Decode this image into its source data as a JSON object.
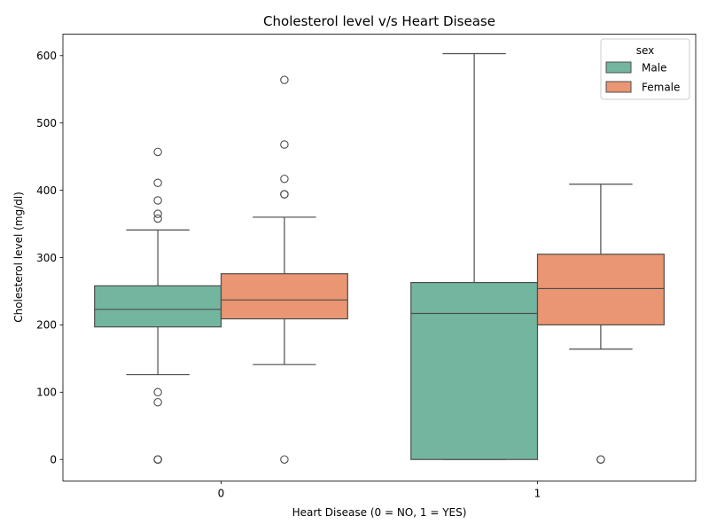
{
  "chart_data": {
    "type": "box",
    "title": "Cholesterol level v/s Heart Disease",
    "xlabel": "Heart Disease (0 = NO, 1 = YES)",
    "ylabel": "Cholesterol level (mg/dl)",
    "categories": [
      "0",
      "1"
    ],
    "ylim": [
      -32,
      632
    ],
    "yticks": [
      0,
      100,
      200,
      300,
      400,
      500,
      600
    ],
    "legend": {
      "title": "sex",
      "position": "top-right",
      "entries": [
        "Male",
        "Female"
      ]
    },
    "colors": {
      "Male": "#73b6a0",
      "Female": "#ea9672",
      "line": "#4d4d4d",
      "axis": "#000000"
    },
    "series": [
      {
        "name": "Male",
        "boxes": [
          {
            "category": "0",
            "whisker_low": 126,
            "q1": 197,
            "median": 223,
            "q3": 258,
            "whisker_high": 341,
            "outliers": [
              457,
              411,
              385,
              365,
              358,
              100,
              85,
              0,
              0,
              0
            ]
          },
          {
            "category": "1",
            "whisker_low": 0,
            "q1": 0,
            "median": 217,
            "q3": 263,
            "whisker_high": 603,
            "outliers": []
          }
        ]
      },
      {
        "name": "Female",
        "boxes": [
          {
            "category": "0",
            "whisker_low": 141,
            "q1": 209,
            "median": 237,
            "q3": 276,
            "whisker_high": 360,
            "outliers": [
              564,
              468,
              417,
              394,
              394,
              0
            ]
          },
          {
            "category": "1",
            "whisker_low": 164,
            "q1": 200,
            "median": 254,
            "q3": 305,
            "whisker_high": 409,
            "outliers": [
              0,
              0
            ]
          }
        ]
      }
    ]
  }
}
